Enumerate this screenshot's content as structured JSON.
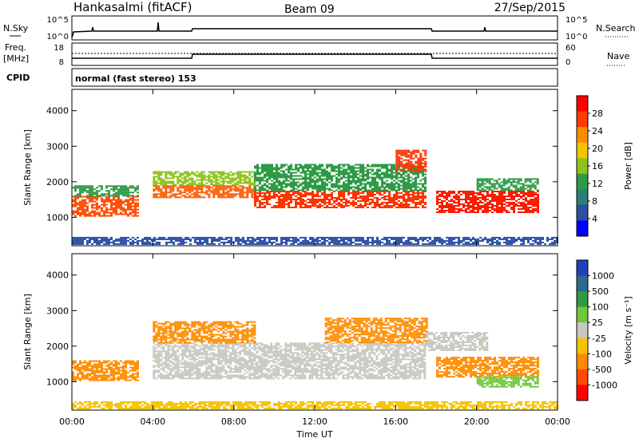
{
  "header": {
    "station": "Hankasalmi (fitACF)",
    "beam": "Beam 09",
    "date": "27/Sep/2015"
  },
  "strips": {
    "nsky_label": "N.Sky",
    "nsky_ticks": [
      "10^5",
      "10^0"
    ],
    "nsearch_label": "N.Search",
    "nsearch_ticks": [
      "10^5",
      "10^0"
    ],
    "freq_label": "Freq.",
    "freq_unit": "[MHz]",
    "freq_ticks": [
      "18",
      "8"
    ],
    "nave_label": "Nave",
    "nave_ticks": [
      "60",
      "0"
    ],
    "cpid_label": "CPID",
    "cpid_text": "normal (fast stereo) 153"
  },
  "chart_data": [
    {
      "type": "heatmap",
      "variable": "Power",
      "ylabel": "Slant Range [km]",
      "ylim": [
        200,
        4600
      ],
      "yticks": [
        "4000",
        "3000",
        "2000",
        "1000"
      ],
      "xlabel": "",
      "colorbar_label": "Power [dB]",
      "colorbar_ticks": [
        "28",
        "24",
        "20",
        "16",
        "12",
        "8",
        "4"
      ],
      "colorbar_colors": [
        "#ff0000",
        "#ff3b00",
        "#ff8c00",
        "#f5c400",
        "#8fc31a",
        "#2f9a46",
        "#2c7f76",
        "#2b4fa6",
        "#0000ff"
      ],
      "bands": [
        {
          "t0": 0.0,
          "t1": 3.2,
          "r0": 1050,
          "r1": 1600,
          "color": "#ff4a00"
        },
        {
          "t0": 0.0,
          "t1": 3.2,
          "r0": 1600,
          "r1": 1900,
          "color": "#2f9a46"
        },
        {
          "t0": 4.0,
          "t1": 9.0,
          "r0": 1550,
          "r1": 1900,
          "color": "#ff5a00"
        },
        {
          "t0": 4.0,
          "t1": 9.0,
          "r0": 1900,
          "r1": 2300,
          "color": "#8fc31a"
        },
        {
          "t0": 9.0,
          "t1": 17.5,
          "r0": 1300,
          "r1": 1750,
          "color": "#ff3300"
        },
        {
          "t0": 9.0,
          "t1": 17.5,
          "r0": 1750,
          "r1": 2500,
          "color": "#2f9a46"
        },
        {
          "t0": 16.0,
          "t1": 17.5,
          "r0": 2300,
          "r1": 2900,
          "color": "#ff3300"
        },
        {
          "t0": 18.0,
          "t1": 23.0,
          "r0": 1150,
          "r1": 1750,
          "color": "#ff1a00"
        },
        {
          "t0": 20.0,
          "t1": 23.0,
          "r0": 1750,
          "r1": 2100,
          "color": "#2f9a46"
        },
        {
          "t0": 0.0,
          "t1": 24.0,
          "r0": 250,
          "r1": 450,
          "color": "#2b4fa6"
        }
      ]
    },
    {
      "type": "heatmap",
      "variable": "Velocity",
      "ylabel": "Slant Range [km]",
      "ylim": [
        200,
        4600
      ],
      "yticks": [
        "4000",
        "3000",
        "2000",
        "1000"
      ],
      "xlabel": "Time UT",
      "xticks": [
        "00:00",
        "04:00",
        "08:00",
        "12:00",
        "16:00",
        "20:00",
        "00:00"
      ],
      "colorbar_label": "Velocity [m s⁻¹]",
      "colorbar_ticks": [
        "1000",
        "500",
        "100",
        "25",
        "-25",
        "-100",
        "-500",
        "-1000"
      ],
      "colorbar_colors": [
        "#1f3fbf",
        "#2a6a8a",
        "#2f9a46",
        "#6dc83a",
        "#c8c8c0",
        "#f5c400",
        "#ff8c00",
        "#ff4a00",
        "#ff0000"
      ],
      "bands": [
        {
          "t0": 0.0,
          "t1": 3.2,
          "r0": 1050,
          "r1": 1600,
          "color": "#ff8c00"
        },
        {
          "t0": 4.0,
          "t1": 17.5,
          "r0": 1100,
          "r1": 2100,
          "color": "#c8c8c0"
        },
        {
          "t0": 4.0,
          "t1": 9.0,
          "r0": 2100,
          "r1": 2700,
          "color": "#ff8c00"
        },
        {
          "t0": 12.5,
          "t1": 17.5,
          "r0": 2100,
          "r1": 2800,
          "color": "#ff8c00"
        },
        {
          "t0": 17.5,
          "t1": 20.5,
          "r0": 1900,
          "r1": 2400,
          "color": "#c8c8c0"
        },
        {
          "t0": 18.0,
          "t1": 23.0,
          "r0": 1150,
          "r1": 1700,
          "color": "#ff8c00"
        },
        {
          "t0": 20.0,
          "t1": 23.0,
          "r0": 850,
          "r1": 1150,
          "color": "#6dc83a"
        },
        {
          "t0": 0.0,
          "t1": 24.0,
          "r0": 250,
          "r1": 450,
          "color": "#f5c400"
        }
      ]
    }
  ]
}
